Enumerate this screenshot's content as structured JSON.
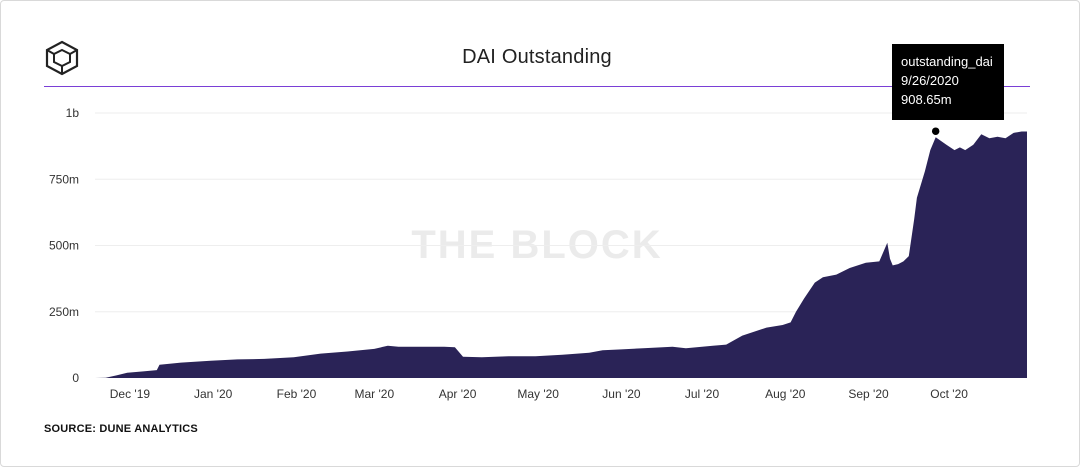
{
  "header": {
    "title": "DAI Outstanding",
    "logo_icon": "the-block-cube-logo-icon"
  },
  "watermark": "THE BLOCK",
  "footer": {
    "source": "SOURCE: DUNE ANALYTICS"
  },
  "tooltip": {
    "series": "outstanding_dai",
    "date": "9/26/2020",
    "value": "908.65m"
  },
  "colors": {
    "area": "#2a2357",
    "accent": "#7a3fd6",
    "tooltip_bg": "#000000"
  },
  "chart_data": {
    "type": "area",
    "title": "DAI Outstanding",
    "xlabel": "",
    "ylabel": "",
    "series_name": "outstanding_dai",
    "x_ticks": [
      "Dec '19",
      "Jan '20",
      "Feb '20",
      "Mar '20",
      "Apr '20",
      "May '20",
      "Jun '20",
      "Jul '20",
      "Aug '20",
      "Sep '20",
      "Oct '20"
    ],
    "x_tick_dates": [
      "2019-12-01",
      "2020-01-01",
      "2020-02-01",
      "2020-03-01",
      "2020-04-01",
      "2020-05-01",
      "2020-06-01",
      "2020-07-01",
      "2020-08-01",
      "2020-09-01",
      "2020-10-01"
    ],
    "y_ticks": [
      0,
      250,
      500,
      750,
      1000
    ],
    "y_tick_labels": [
      "0",
      "250m",
      "500m",
      "750m",
      "1b"
    ],
    "ylim": [
      0,
      1000
    ],
    "xlim": [
      "2019-11-18",
      "2020-10-30"
    ],
    "unit": "millions USD",
    "points": [
      [
        "2019-11-18",
        0
      ],
      [
        "2019-11-22",
        1
      ],
      [
        "2019-11-26",
        10
      ],
      [
        "2019-11-30",
        20
      ],
      [
        "2019-12-06",
        25
      ],
      [
        "2019-12-11",
        30
      ],
      [
        "2019-12-12",
        50
      ],
      [
        "2019-12-20",
        58
      ],
      [
        "2019-12-31",
        65
      ],
      [
        "2020-01-10",
        70
      ],
      [
        "2020-01-20",
        72
      ],
      [
        "2020-01-31",
        78
      ],
      [
        "2020-02-10",
        92
      ],
      [
        "2020-02-20",
        100
      ],
      [
        "2020-03-01",
        110
      ],
      [
        "2020-03-06",
        122
      ],
      [
        "2020-03-10",
        118
      ],
      [
        "2020-03-15",
        118
      ],
      [
        "2020-03-20",
        118
      ],
      [
        "2020-03-27",
        118
      ],
      [
        "2020-03-31",
        116
      ],
      [
        "2020-04-03",
        80
      ],
      [
        "2020-04-10",
        78
      ],
      [
        "2020-04-20",
        82
      ],
      [
        "2020-04-30",
        82
      ],
      [
        "2020-05-10",
        88
      ],
      [
        "2020-05-20",
        95
      ],
      [
        "2020-05-25",
        105
      ],
      [
        "2020-06-01",
        108
      ],
      [
        "2020-06-10",
        113
      ],
      [
        "2020-06-20",
        118
      ],
      [
        "2020-06-25",
        112
      ],
      [
        "2020-07-05",
        122
      ],
      [
        "2020-07-10",
        126
      ],
      [
        "2020-07-16",
        160
      ],
      [
        "2020-07-25",
        190
      ],
      [
        "2020-07-31",
        200
      ],
      [
        "2020-08-03",
        210
      ],
      [
        "2020-08-05",
        250
      ],
      [
        "2020-08-08",
        300
      ],
      [
        "2020-08-12",
        360
      ],
      [
        "2020-08-15",
        380
      ],
      [
        "2020-08-20",
        390
      ],
      [
        "2020-08-25",
        415
      ],
      [
        "2020-08-31",
        435
      ],
      [
        "2020-09-05",
        440
      ],
      [
        "2020-09-08",
        510
      ],
      [
        "2020-09-09",
        450
      ],
      [
        "2020-09-10",
        425
      ],
      [
        "2020-09-12",
        430
      ],
      [
        "2020-09-14",
        440
      ],
      [
        "2020-09-16",
        460
      ],
      [
        "2020-09-18",
        600
      ],
      [
        "2020-09-19",
        680
      ],
      [
        "2020-09-22",
        780
      ],
      [
        "2020-09-24",
        860
      ],
      [
        "2020-09-26",
        908.65
      ],
      [
        "2020-09-30",
        880
      ],
      [
        "2020-10-03",
        860
      ],
      [
        "2020-10-05",
        870
      ],
      [
        "2020-10-07",
        860
      ],
      [
        "2020-10-10",
        880
      ],
      [
        "2020-10-13",
        920
      ],
      [
        "2020-10-16",
        905
      ],
      [
        "2020-10-19",
        910
      ],
      [
        "2020-10-22",
        905
      ],
      [
        "2020-10-25",
        925
      ],
      [
        "2020-10-28",
        930
      ],
      [
        "2020-10-30",
        930
      ]
    ],
    "highlight": {
      "date": "2020-09-26",
      "value": 908.65
    }
  }
}
